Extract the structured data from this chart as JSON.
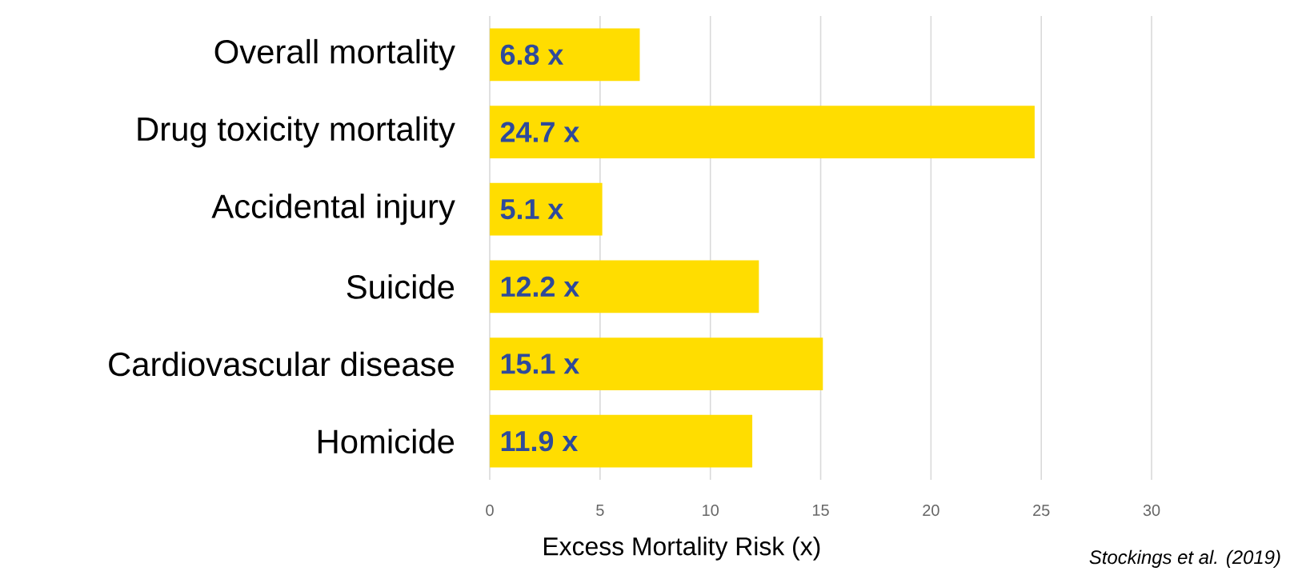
{
  "chart_data": {
    "type": "bar",
    "orientation": "horizontal",
    "categories": [
      "Overall mortality",
      "Drug toxicity mortality",
      "Accidental injury",
      "Suicide",
      "Cardiovascular disease",
      "Homicide"
    ],
    "values": [
      6.8,
      24.7,
      5.1,
      12.2,
      15.1,
      11.9
    ],
    "value_labels": [
      "6.8 x",
      "24.7 x",
      "5.1 x",
      "12.2 x",
      "15.1 x",
      "11.9 x"
    ],
    "color": "#ffdd00",
    "xlim": [
      0,
      30
    ],
    "xticks": [
      0,
      5,
      10,
      15,
      20,
      25,
      30
    ],
    "grid": "x",
    "xlabel": "Excess Mortality Risk (x)",
    "annotations": [
      "Stockings et al. (2019)"
    ]
  }
}
